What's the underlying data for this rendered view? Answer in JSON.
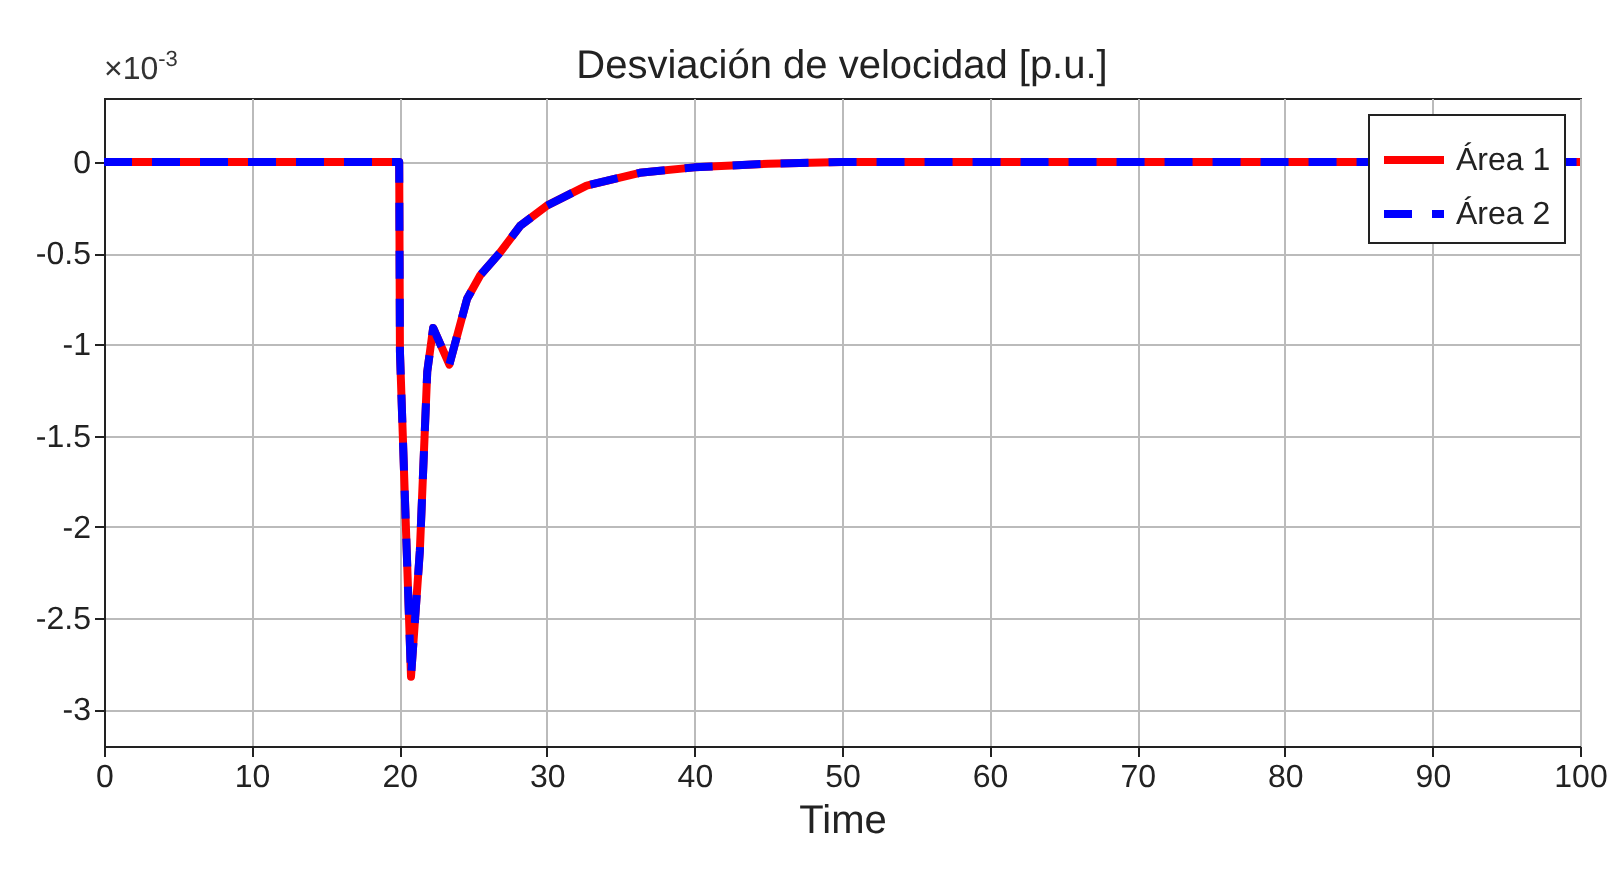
{
  "chart_data": {
    "type": "line",
    "title": "Desviación de velocidad [p.u.]",
    "xlabel": "Time",
    "annotations": [
      "×10$^{-3}$"
    ],
    "x": [
      0,
      20,
      20.05,
      20.8,
      21.4,
      21.9,
      22.3,
      23.4,
      24.6,
      25.5,
      26.8,
      28.2,
      30,
      32.7,
      36.3,
      40,
      45,
      50,
      100
    ],
    "series": [
      {
        "name": "Área 1",
        "color": "#ff0000",
        "line_style": "solid",
        "values": [
          0,
          0,
          -1.04,
          -2.82,
          -2.13,
          -1.15,
          -0.91,
          -1.11,
          -0.75,
          -0.62,
          -0.5,
          -0.35,
          -0.24,
          -0.13,
          -0.06,
          -0.03,
          -0.01,
          0,
          0
        ]
      },
      {
        "name": "Área 2",
        "color": "#0000ff",
        "line_style": "dashed",
        "values": [
          0,
          0,
          -1.04,
          -2.82,
          -2.13,
          -1.15,
          -0.91,
          -1.11,
          -0.75,
          -0.62,
          -0.5,
          -0.35,
          -0.24,
          -0.13,
          -0.06,
          -0.03,
          -0.01,
          0,
          0
        ]
      }
    ],
    "xlim": [
      0,
      100
    ],
    "xticks": [
      0,
      10,
      20,
      30,
      40,
      50,
      60,
      70,
      80,
      90,
      100
    ],
    "ylim": [
      -3.2,
      0.35
    ],
    "yticks": [
      -3,
      -2.5,
      -2,
      -1.5,
      -1,
      -0.5,
      0
    ],
    "grid": true,
    "legend": "top right"
  }
}
